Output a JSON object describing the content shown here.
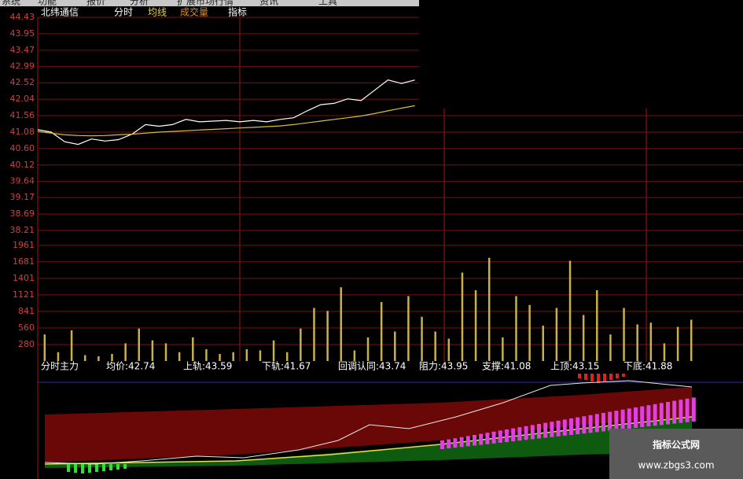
{
  "menu": [
    "系统",
    "功能",
    "报价",
    "分析",
    "扩展市场行情",
    "资讯",
    "工具"
  ],
  "header": {
    "stock": "北纬通信",
    "tabs": [
      "分时",
      "均线",
      "成交量",
      "指标"
    ]
  },
  "chart_data": [
    {
      "type": "line",
      "x": [
        0,
        4,
        8,
        12,
        16,
        20,
        24,
        28,
        32,
        36,
        40,
        44,
        48,
        52,
        56,
        60,
        64,
        68,
        72,
        76,
        80,
        84,
        88,
        92,
        96,
        100,
        104,
        108,
        112
      ],
      "xlim": [
        0,
        240
      ],
      "series": [
        {
          "color": "#ffffff",
          "values": [
            41.15,
            41.08,
            40.8,
            40.72,
            40.88,
            40.82,
            40.86,
            41.02,
            41.3,
            41.25,
            41.3,
            41.45,
            41.38,
            41.4,
            41.42,
            41.38,
            41.42,
            41.38,
            41.45,
            41.5,
            41.7,
            41.88,
            41.92,
            42.05,
            42.0,
            42.3,
            42.6,
            42.5,
            42.6
          ]
        },
        {
          "color": "#d4c040",
          "values": [
            41.1,
            41.05,
            41.0,
            40.98,
            40.97,
            40.98,
            41.0,
            41.02,
            41.05,
            41.08,
            41.1,
            41.12,
            41.14,
            41.16,
            41.18,
            41.2,
            41.22,
            41.24,
            41.26,
            41.3,
            41.35,
            41.4,
            41.45,
            41.5,
            41.55,
            41.62,
            41.7,
            41.78,
            41.85
          ]
        }
      ],
      "ylim": [
        38.21,
        44.43
      ],
      "yticks": [
        38.21,
        38.69,
        39.17,
        39.64,
        {
          "value": 40.12,
          "label": "40.12"
        },
        {
          "value": 40.6,
          "label": "40.60"
        },
        41.08,
        41.56,
        42.04,
        42.52,
        42.99,
        43.47,
        43.95,
        44.43
      ],
      "grid": true
    },
    {
      "type": "bar",
      "x": [
        2,
        6,
        10,
        14,
        18,
        22,
        26,
        30,
        34,
        38,
        42,
        46,
        50,
        54,
        58,
        62,
        66,
        70,
        74,
        78,
        82,
        86,
        90,
        94,
        98,
        102,
        106,
        110,
        114,
        118,
        122,
        126,
        130,
        134,
        138,
        142,
        146,
        150,
        154,
        158,
        162,
        166,
        170,
        174,
        178,
        182,
        186,
        190,
        194
      ],
      "xlim": [
        0,
        240
      ],
      "values": [
        450,
        150,
        520,
        100,
        80,
        120,
        300,
        550,
        350,
        300,
        150,
        400,
        200,
        120,
        150,
        200,
        180,
        350,
        150,
        550,
        900,
        850,
        1250,
        180,
        400,
        1000,
        500,
        1100,
        750,
        500,
        380,
        1500,
        1200,
        1750,
        400,
        1100,
        950,
        600,
        900,
        1700,
        780,
        1200,
        450,
        900,
        620,
        650,
        300,
        580,
        700
      ],
      "color": "#c8b04a",
      "ylim": [
        0,
        2100
      ],
      "yticks": [
        280,
        560,
        841,
        1121,
        1401,
        1681,
        1961
      ],
      "grid": true
    }
  ],
  "indicator": {
    "labels": [
      "分时主力",
      "均价:42.74",
      "上轨:43.59",
      "下轨:41.67",
      "回调认同:43.74",
      "阻力:43.95",
      "支撑:41.08",
      "上顶:43.15",
      "下底:41.88"
    ]
  },
  "watermark": {
    "title": "指标公式网",
    "url": "www.zbgs3.com"
  }
}
